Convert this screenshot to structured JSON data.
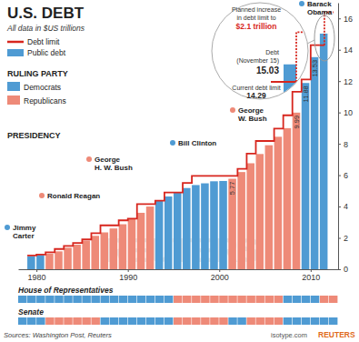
{
  "chart_data": {
    "type": "bar",
    "title": "U.S. DEBT",
    "subtitle": "All data in $US trillions",
    "legend": "top-left",
    "data_labels": true,
    "x": [
      1979,
      1980,
      1981,
      1982,
      1983,
      1984,
      1985,
      1986,
      1987,
      1988,
      1989,
      1990,
      1991,
      1992,
      1993,
      1994,
      1995,
      1996,
      1997,
      1998,
      1999,
      2000,
      2001,
      2002,
      2003,
      2004,
      2005,
      2006,
      2007,
      2008,
      2009,
      2010,
      2011
    ],
    "xlim": [
      1978,
      2013
    ],
    "xticks": [
      1980,
      1990,
      2000,
      2010
    ],
    "ylim": [
      0,
      17
    ],
    "yticks": [
      0,
      2,
      4,
      6,
      8,
      10,
      12,
      14,
      16
    ],
    "series": [
      {
        "name": "Public debt",
        "type": "bar",
        "color": "#4f9bd3",
        "colors": [
          "#4f9bd3",
          "#4f9bd3",
          "#ee8a78",
          "#ee8a78",
          "#ee8a78",
          "#ee8a78",
          "#ee8a78",
          "#ee8a78",
          "#ee8a78",
          "#ee8a78",
          "#ee8a78",
          "#ee8a78",
          "#ee8a78",
          "#ee8a78",
          "#4f9bd3",
          "#4f9bd3",
          "#4f9bd3",
          "#4f9bd3",
          "#4f9bd3",
          "#4f9bd3",
          "#4f9bd3",
          "#4f9bd3",
          "#ee8a78",
          "#ee8a78",
          "#ee8a78",
          "#ee8a78",
          "#ee8a78",
          "#ee8a78",
          "#ee8a78",
          "#ee8a78",
          "#4f9bd3",
          "#4f9bd3",
          "#4f9bd3"
        ],
        "values": [
          0.83,
          0.91,
          1.0,
          1.14,
          1.37,
          1.57,
          1.82,
          2.13,
          2.35,
          2.6,
          2.87,
          3.21,
          3.6,
          4.0,
          4.35,
          4.64,
          4.92,
          5.18,
          5.37,
          5.48,
          5.61,
          5.63,
          5.77,
          6.2,
          6.76,
          7.35,
          7.91,
          8.45,
          9.0,
          9.99,
          11.88,
          13.53,
          15.03
        ],
        "value_labels": [
          null,
          null,
          null,
          null,
          null,
          null,
          null,
          null,
          null,
          null,
          null,
          null,
          null,
          null,
          null,
          null,
          null,
          null,
          null,
          null,
          null,
          null,
          "5.77",
          null,
          null,
          null,
          null,
          null,
          null,
          "9.99",
          "11.88",
          "13.53",
          null
        ]
      },
      {
        "name": "Debt limit",
        "type": "line",
        "line_style": "step",
        "color": "#d7261e",
        "values": [
          0.88,
          0.93,
          1.08,
          1.29,
          1.49,
          1.68,
          1.9,
          2.3,
          2.8,
          2.8,
          3.12,
          3.23,
          4.15,
          4.15,
          4.37,
          4.9,
          4.9,
          5.5,
          5.95,
          5.95,
          5.95,
          5.95,
          5.95,
          6.4,
          7.38,
          8.18,
          8.18,
          8.97,
          9.82,
          11.32,
          12.1,
          14.29,
          14.29
        ]
      }
    ],
    "ruling_party": {
      "title": "RULING PARTY",
      "parties": [
        {
          "name": "Democrats",
          "color": "#4f9bd3"
        },
        {
          "name": "Republicans",
          "color": "#ee8a78"
        }
      ]
    },
    "presidency": {
      "title": "PRESIDENCY",
      "presidents": [
        {
          "name": [
            "Jimmy",
            "Carter"
          ],
          "color": "#4f9bd3"
        },
        {
          "name": [
            "Ronald Reagan"
          ],
          "color": "#ee8a78"
        },
        {
          "name": [
            "George",
            "H. W. Bush"
          ],
          "color": "#ee8a78"
        },
        {
          "name": [
            "Bill Clinton"
          ],
          "color": "#4f9bd3"
        },
        {
          "name": [
            "George",
            "W. Bush"
          ],
          "color": "#ee8a78"
        },
        {
          "name": [
            "Barack",
            "Obama"
          ],
          "color": "#4f9bd3"
        }
      ]
    },
    "inset": {
      "planned": {
        "text": [
          "Planned increase",
          "in debt limit to"
        ],
        "amount": "$2.1 trillion",
        "value": 16.39
      },
      "debt": {
        "text": [
          "Debt",
          "(November 15)"
        ],
        "value": 15.03
      },
      "limit": {
        "text": "Current debt limit",
        "value": 14.29
      }
    },
    "congress": {
      "x": [
        1978,
        1979,
        1980,
        1981,
        1982,
        1983,
        1984,
        1985,
        1986,
        1987,
        1988,
        1989,
        1990,
        1991,
        1992,
        1993,
        1994,
        1995,
        1996,
        1997,
        1998,
        1999,
        2000,
        2001,
        2002,
        2003,
        2004,
        2005,
        2006,
        2007,
        2008,
        2009,
        2010,
        2011,
        2012
      ],
      "rows": [
        {
          "name": "House of Representatives",
          "colors": [
            "#4f9bd3",
            "#4f9bd3",
            "#4f9bd3",
            "#4f9bd3",
            "#4f9bd3",
            "#4f9bd3",
            "#4f9bd3",
            "#4f9bd3",
            "#4f9bd3",
            "#4f9bd3",
            "#4f9bd3",
            "#4f9bd3",
            "#4f9bd3",
            "#4f9bd3",
            "#4f9bd3",
            "#4f9bd3",
            "#4f9bd3",
            "#ee8a78",
            "#ee8a78",
            "#ee8a78",
            "#ee8a78",
            "#ee8a78",
            "#ee8a78",
            "#ee8a78",
            "#ee8a78",
            "#ee8a78",
            "#ee8a78",
            "#ee8a78",
            "#ee8a78",
            "#4f9bd3",
            "#4f9bd3",
            "#4f9bd3",
            "#4f9bd3",
            "#ee8a78",
            "#ee8a78"
          ]
        },
        {
          "name": "Senate",
          "colors": [
            "#4f9bd3",
            "#4f9bd3",
            "#4f9bd3",
            "#ee8a78",
            "#ee8a78",
            "#ee8a78",
            "#ee8a78",
            "#ee8a78",
            "#ee8a78",
            "#4f9bd3",
            "#4f9bd3",
            "#4f9bd3",
            "#4f9bd3",
            "#4f9bd3",
            "#4f9bd3",
            "#4f9bd3",
            "#4f9bd3",
            "#ee8a78",
            "#ee8a78",
            "#ee8a78",
            "#ee8a78",
            "#ee8a78",
            "#ee8a78",
            "#4f9bd3",
            "#4f9bd3",
            "#ee8a78",
            "#ee8a78",
            "#ee8a78",
            "#ee8a78",
            "#4f9bd3",
            "#4f9bd3",
            "#4f9bd3",
            "#4f9bd3",
            "#4f9bd3",
            "#4f9bd3"
          ]
        }
      ]
    },
    "source": "Sources: Washington Post, Reuters",
    "credits": [
      "isotype.com",
      "REUTERS"
    ],
    "watermark": "REUTERS"
  }
}
